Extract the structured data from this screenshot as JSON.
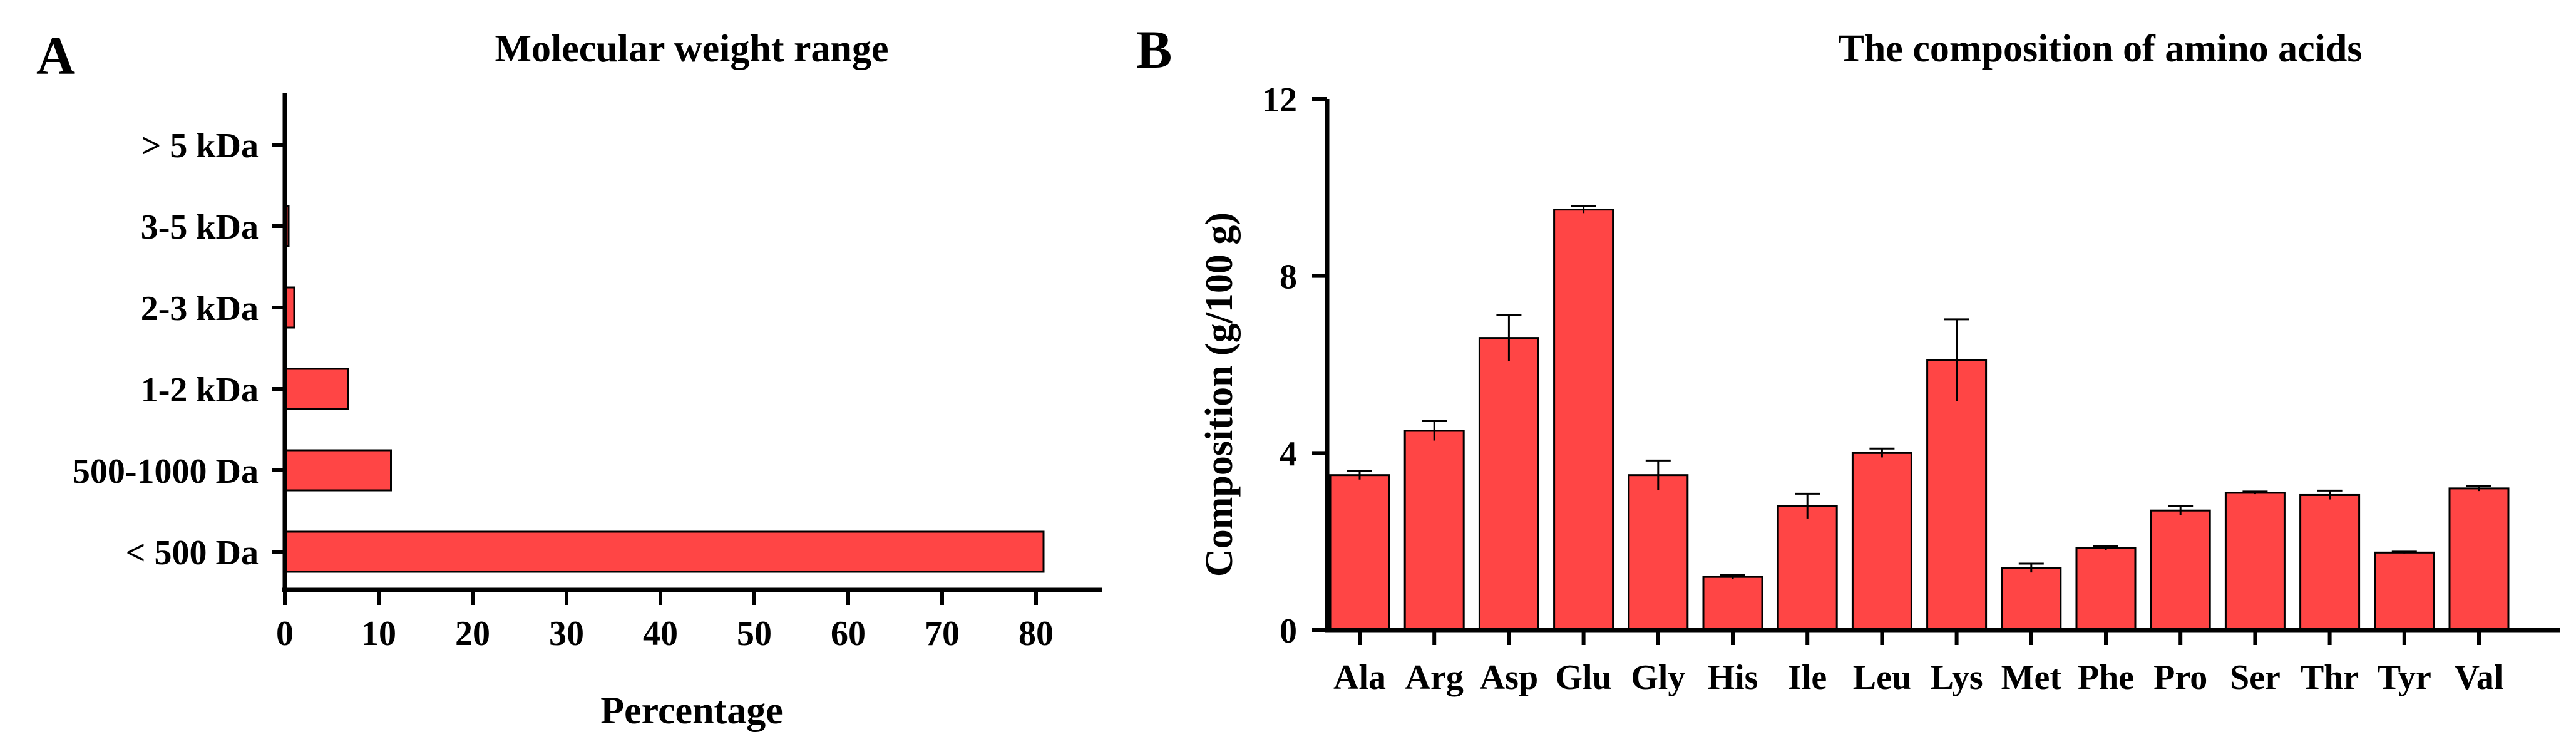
{
  "colors": {
    "bar": "#ff4545",
    "axis": "#000000"
  },
  "chart_data": [
    {
      "type": "bar",
      "orientation": "horizontal",
      "panel": "A",
      "title": "Molecular weight range",
      "xlabel": "Percentage",
      "ylabel": "",
      "categories": [
        "> 5 kDa",
        "3-5 kDa",
        "2-3 kDa",
        "1-2 kDa",
        "500-1000 Da",
        "< 500 Da"
      ],
      "values": [
        0.1,
        0.4,
        1.0,
        6.7,
        11.3,
        80.8
      ],
      "xlim": [
        0,
        87
      ],
      "xticks": [
        0,
        10,
        20,
        30,
        40,
        50,
        60,
        70,
        80
      ],
      "legend": "none",
      "grid": false
    },
    {
      "type": "bar",
      "orientation": "vertical",
      "panel": "B",
      "title": "The composition of amino acids",
      "xlabel": "",
      "ylabel": "Composition (g/100 g)",
      "categories": [
        "Ala",
        "Arg",
        "Asp",
        "Glu",
        "Gly",
        "His",
        "Ile",
        "Leu",
        "Lys",
        "Met",
        "Phe",
        "Pro",
        "Ser",
        "Thr",
        "Tyr",
        "Val"
      ],
      "values": [
        3.5,
        4.5,
        6.6,
        9.5,
        3.5,
        1.2,
        2.8,
        4.0,
        6.1,
        1.4,
        1.85,
        2.7,
        3.1,
        3.05,
        1.75,
        3.2
      ],
      "errors": [
        0.1,
        0.22,
        0.52,
        0.08,
        0.33,
        0.05,
        0.28,
        0.1,
        0.92,
        0.1,
        0.05,
        0.1,
        0.03,
        0.1,
        0.02,
        0.06
      ],
      "ylim": [
        0,
        12
      ],
      "yticks": [
        0,
        4,
        8,
        12
      ],
      "legend": "none",
      "grid": false
    }
  ]
}
